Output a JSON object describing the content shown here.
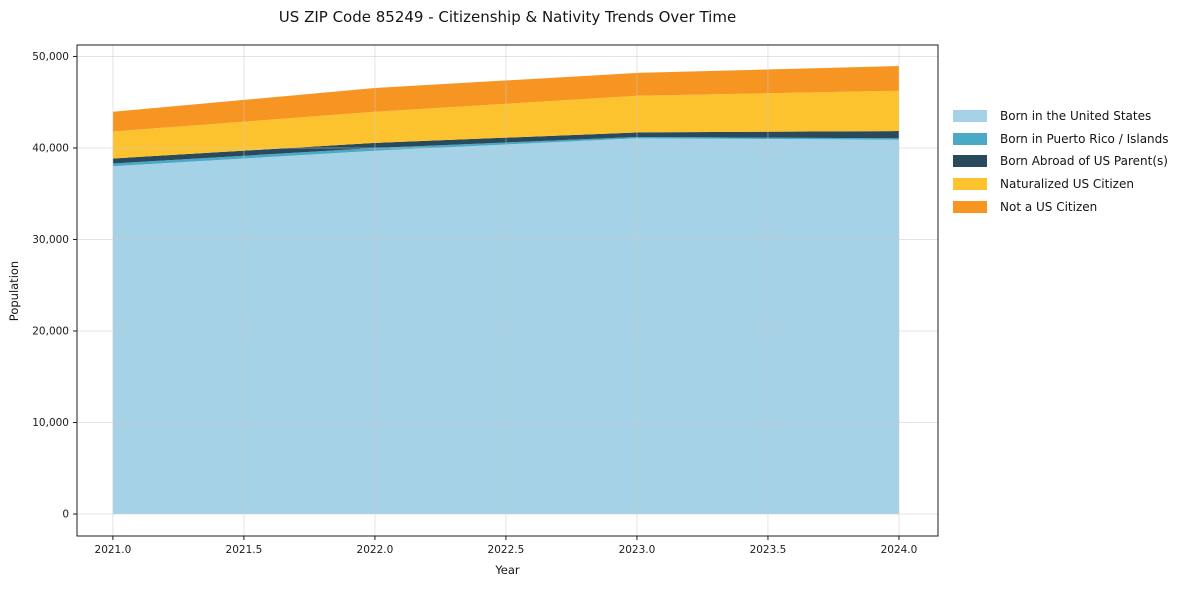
{
  "chart_data": {
    "type": "area",
    "stacked": true,
    "title": "US ZIP Code 85249 - Citizenship & Nativity Trends Over Time",
    "xlabel": "Year",
    "ylabel": "Population",
    "x": [
      2021,
      2022,
      2023,
      2024
    ],
    "series": [
      {
        "name": "Born in the United States",
        "color": "#a6d2e7",
        "values": [
          38000,
          39700,
          41050,
          40900
        ]
      },
      {
        "name": "Born in Puerto Rico / Islands",
        "color": "#4aa9c5",
        "values": [
          300,
          300,
          150,
          150
        ]
      },
      {
        "name": "Born Abroad of US Parent(s)",
        "color": "#294a5d",
        "values": [
          550,
          550,
          500,
          800
        ]
      },
      {
        "name": "Naturalized US Citizen",
        "color": "#fdc32e",
        "values": [
          2950,
          3400,
          4000,
          4400
        ]
      },
      {
        "name": "Not a US Citizen",
        "color": "#f79522",
        "values": [
          2150,
          2600,
          2500,
          2700
        ]
      }
    ],
    "xticks": [
      2021.0,
      2021.5,
      2022.0,
      2022.5,
      2023.0,
      2023.5,
      2024.0
    ],
    "xtick_labels": [
      "2021.0",
      "2021.5",
      "2022.0",
      "2022.5",
      "2023.0",
      "2023.5",
      "2024.0"
    ],
    "yticks": [
      0,
      10000,
      20000,
      30000,
      40000,
      50000
    ],
    "ytick_labels": [
      "0",
      "10,000",
      "20,000",
      "30,000",
      "40,000",
      "50,000"
    ],
    "xlim": [
      2020.863,
      2024.149
    ],
    "ylim": [
      -2400,
      51250
    ],
    "grid": true,
    "legend_position": "right-outside",
    "style": {
      "background": "#ffffff",
      "grid_color": "#c9c9c9",
      "spine_color": "#1c1c1c",
      "text_color": "#151515"
    }
  }
}
